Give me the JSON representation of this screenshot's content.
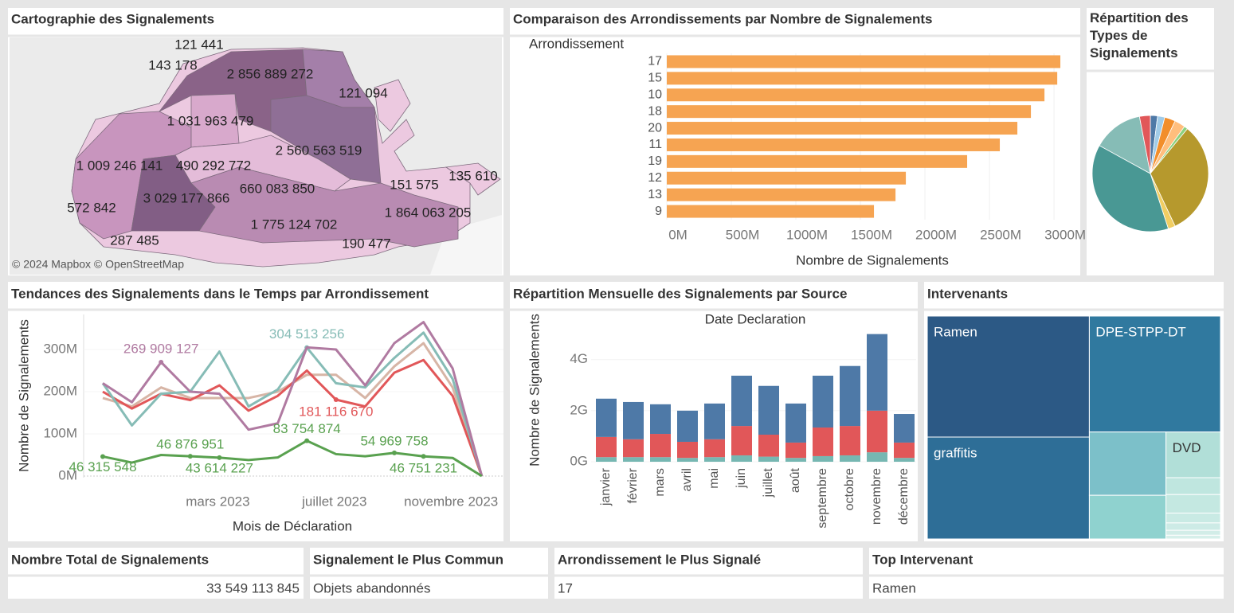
{
  "map": {
    "title": "Cartographie des Signalements",
    "labels": [
      "121 441",
      "143 178",
      "2 856 889 272",
      "121 094",
      "1 031 963 479",
      "2 560 563 519",
      "1 009 246 141",
      "490 292 772",
      "135 610",
      "151 575",
      "660 083 850",
      "3 029 177 866",
      "572 842",
      "1 864 063 205",
      "1 775 124 702",
      "287 485",
      "190 477"
    ],
    "attribution": "© 2024 Mapbox © OpenStreetMap"
  },
  "chart_data": [
    {
      "type": "bar",
      "orientation": "horizontal",
      "title": "Comparaison des Arrondissements par Nombre de Signalements",
      "y_label": "Arrondissement",
      "x_label": "Nombre de Signalements",
      "categories": [
        "17",
        "15",
        "10",
        "18",
        "20",
        "11",
        "19",
        "12",
        "13",
        "9"
      ],
      "values": [
        3049000000,
        3025000000,
        2926000000,
        2821000000,
        2716000000,
        2580000000,
        2327000000,
        1852000000,
        1772000000,
        1605000000
      ],
      "color": "#f6a452",
      "xlim": [
        0,
        3160000000
      ],
      "xticks": [
        {
          "value": 0,
          "label": "0M"
        },
        {
          "value": 500000000,
          "label": "500M"
        },
        {
          "value": 1000000000,
          "label": "1000M"
        },
        {
          "value": 1500000000,
          "label": "1500M"
        },
        {
          "value": 2000000000,
          "label": "2000M"
        },
        {
          "value": 2500000000,
          "label": "2500M"
        },
        {
          "value": 3000000000,
          "label": "3000M"
        }
      ]
    },
    {
      "type": "pie",
      "title": "Répartition des Types de Signalements",
      "values": [
        2,
        2,
        3,
        3,
        1,
        32,
        2,
        38,
        14,
        3
      ],
      "colors": [
        "#4e79a7",
        "#a0cbe8",
        "#f28e2b",
        "#ffbe7d",
        "#8cd17d",
        "#b6992d",
        "#f1ce63",
        "#499894",
        "#86bcb6",
        "#e15759"
      ]
    },
    {
      "type": "line",
      "title": "Tendances des Signalements dans le Temps par Arrondissement",
      "x_label": "Mois de Déclaration",
      "y_label": "Nombre de Signalements",
      "categories": [
        null,
        null,
        null,
        null,
        "mars 2023",
        null,
        null,
        null,
        "juillet 2023",
        null,
        null,
        null,
        "novembre 2023",
        null
      ],
      "ylim": [
        0,
        383000000
      ],
      "yticks": [
        {
          "value": 0,
          "label": "0M"
        },
        {
          "value": 100000000,
          "label": "100M"
        },
        {
          "value": 200000000,
          "label": "200M"
        },
        {
          "value": 300000000,
          "label": "300M"
        }
      ],
      "series": [
        {
          "color": "#d7b5a6",
          "values": [
            185000000,
            165000000,
            210000000,
            185000000,
            185000000,
            185000000,
            200000000,
            240000000,
            240000000,
            185000000,
            260000000,
            315000000,
            210000000,
            0
          ]
        },
        {
          "color": "#e15759",
          "values": [
            200000000,
            160000000,
            195000000,
            180000000,
            215000000,
            155000000,
            190000000,
            250000000,
            181116670,
            165000000,
            245000000,
            275000000,
            190000000,
            0
          ],
          "value_labels": [
            null,
            null,
            null,
            null,
            null,
            null,
            null,
            null,
            "181 116 670",
            null,
            null,
            null,
            null,
            null
          ]
        },
        {
          "color": "#86bcb6",
          "values": [
            220000000,
            120000000,
            195000000,
            200000000,
            295000000,
            165000000,
            205000000,
            304513256,
            220000000,
            210000000,
            280000000,
            340000000,
            230000000,
            0
          ],
          "value_labels": [
            null,
            null,
            null,
            null,
            null,
            null,
            null,
            "304 513 256",
            null,
            null,
            null,
            null,
            null,
            null
          ]
        },
        {
          "color": "#b07aa1",
          "values": [
            220000000,
            175000000,
            269909127,
            200000000,
            195000000,
            110000000,
            125000000,
            305000000,
            300000000,
            215000000,
            315000000,
            365000000,
            255000000,
            0
          ],
          "value_labels": [
            null,
            null,
            "269 909 127",
            null,
            null,
            null,
            null,
            null,
            null,
            null,
            null,
            null,
            null,
            null
          ]
        },
        {
          "color": "#59a14f",
          "values": [
            46315548,
            32000000,
            50000000,
            46876951,
            43614227,
            38000000,
            44000000,
            83754874,
            52000000,
            47000000,
            54969758,
            46751231,
            43000000,
            0
          ],
          "value_labels": [
            "46 315 548",
            null,
            null,
            "46 876 951",
            "43 614 227",
            null,
            null,
            "83 754 874",
            null,
            null,
            "54 969 758",
            "46 751 231",
            null,
            null
          ]
        }
      ]
    },
    {
      "type": "stacked_bar",
      "title": "Répartition Mensuelle des Signalements par Source",
      "x_header": "Date Declaration",
      "y_label": "Nombre de Signalements",
      "categories": [
        "janvier",
        "février",
        "mars",
        "avril",
        "mai",
        "juin",
        "juillet",
        "août",
        "septembre",
        "octobre",
        "novembre",
        "décembre"
      ],
      "ylim": [
        0,
        5300000000
      ],
      "yticks": [
        {
          "value": 0,
          "label": "0G"
        },
        {
          "value": 2000000000,
          "label": "2G"
        },
        {
          "value": 4000000000,
          "label": "4G"
        }
      ],
      "series": [
        {
          "color": "#76b7b2",
          "values": [
            180000000,
            180000000,
            180000000,
            150000000,
            180000000,
            250000000,
            200000000,
            150000000,
            220000000,
            250000000,
            370000000,
            150000000
          ]
        },
        {
          "color": "#e15759",
          "values": [
            790000000,
            700000000,
            910000000,
            630000000,
            700000000,
            1150000000,
            860000000,
            600000000,
            1120000000,
            1150000000,
            1630000000,
            600000000
          ]
        },
        {
          "color": "#4e79a7",
          "values": [
            1500000000,
            1460000000,
            1160000000,
            1220000000,
            1400000000,
            1970000000,
            1910000000,
            1530000000,
            2030000000,
            2350000000,
            3000000000,
            1120000000
          ]
        }
      ]
    },
    {
      "type": "treemap",
      "title": "Intervenants",
      "categories": [
        "Ramen",
        "graffitis",
        "DPE-STPP-DT",
        null,
        null,
        "DVD",
        null,
        null,
        null,
        null,
        null,
        null
      ],
      "values": [
        29184,
        24576,
        22620,
        7221,
        4980,
        3705,
        1368,
        1500,
        800,
        600,
        400,
        300
      ],
      "colors": [
        "#2c5985",
        "#2e6e97",
        "#30799f",
        "#7cc0c9",
        "#8fd2cf",
        "#b1dfd8",
        "#bfe6df",
        "#c4e8e1",
        "#c9eae4",
        "#cdebe6",
        "#d2ede8",
        "#d6efea"
      ]
    }
  ],
  "kpis": [
    {
      "title": "Nombre Total de Signalements",
      "value": "33 549 113 845"
    },
    {
      "title": "Signalement le Plus Commun",
      "value": "Objets abandonnés"
    },
    {
      "title": "Arrondissement le Plus Signalé",
      "value": "17"
    },
    {
      "title": "Top Intervenant",
      "value": "Ramen"
    }
  ]
}
